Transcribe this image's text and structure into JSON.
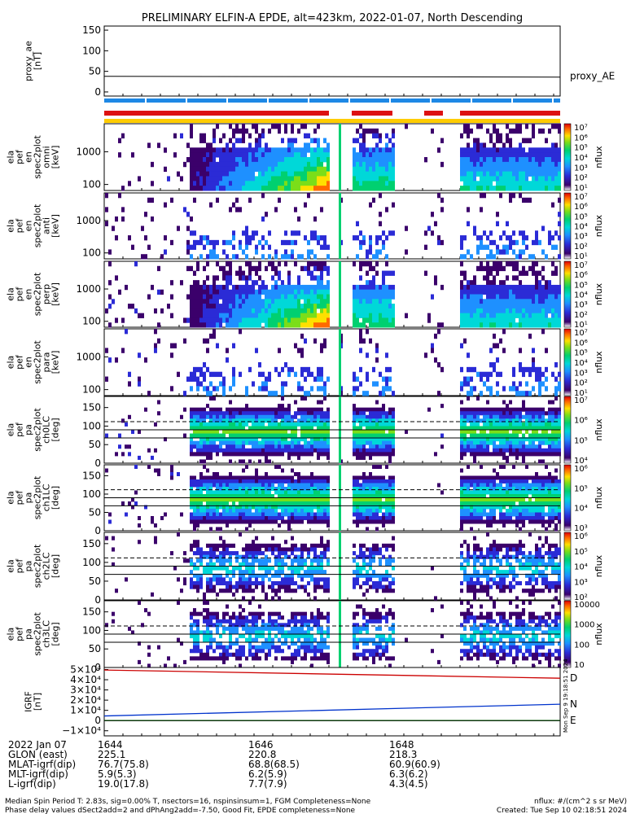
{
  "chart_data": {
    "type": "heatmap",
    "title": "PRELIMINARY ELFIN-A EPDE, alt=423km, 2022-01-07, North Descending",
    "x_time_range": [
      "16:43:00",
      "16:49:35"
    ],
    "x_ticks": [
      "1644",
      "1646",
      "1648"
    ],
    "panels": [
      {
        "name": "proxy_ae",
        "type": "line",
        "ylabel": [
          "proxy_ae",
          "[nT]"
        ],
        "yticks": [
          "150",
          "100",
          "50",
          "0"
        ],
        "ylim": [
          -10,
          160
        ],
        "series": [
          {
            "name": "proxy_AE",
            "values": [
              38,
              38,
              38,
              38,
              38,
              38,
              37,
              37,
              37,
              37,
              36
            ]
          }
        ],
        "legend": "proxy_AE"
      },
      {
        "name": "ela_pef_en_spec2plot_omni",
        "type": "heatmap",
        "ylabel": [
          "ela",
          "pef",
          "en",
          "spec2plot",
          "omni",
          "[keV]"
        ],
        "yticks": [
          "1000",
          "100"
        ],
        "ylog": true,
        "colorbar": {
          "label": "nflux",
          "ticks": [
            "10⁷",
            "10⁶",
            "10⁵",
            "10⁴",
            "10³",
            "10²",
            "10¹"
          ]
        }
      },
      {
        "name": "ela_pef_en_spec2plot_anti",
        "type": "heatmap",
        "ylabel": [
          "ela",
          "pef",
          "en",
          "spec2plot",
          "anti",
          "[keV]"
        ],
        "yticks": [
          "1000",
          "100"
        ],
        "ylog": true,
        "colorbar": {
          "label": "nflux",
          "ticks": [
            "10⁷",
            "10⁶",
            "10⁵",
            "10⁴",
            "10³",
            "10²",
            "10¹"
          ]
        }
      },
      {
        "name": "ela_pef_en_spec2plot_perp",
        "type": "heatmap",
        "ylabel": [
          "ela",
          "pef",
          "en",
          "spec2plot",
          "perp",
          "[keV]"
        ],
        "yticks": [
          "1000",
          "100"
        ],
        "ylog": true,
        "colorbar": {
          "label": "nflux",
          "ticks": [
            "10⁷",
            "10⁶",
            "10⁵",
            "10⁴",
            "10³",
            "10²",
            "10¹"
          ]
        }
      },
      {
        "name": "ela_pef_en_spec2plot_para",
        "type": "heatmap",
        "ylabel": [
          "ela",
          "pef",
          "en",
          "spec2plot",
          "para",
          "[keV]"
        ],
        "yticks": [
          "1000",
          "100"
        ],
        "ylog": true,
        "colorbar": {
          "label": "nflux",
          "ticks": [
            "10⁷",
            "10⁶",
            "10⁵",
            "10⁴",
            "10³",
            "10²",
            "10¹"
          ]
        }
      },
      {
        "name": "ela_pef_pa_spec2plot_ch0LC",
        "type": "heatmap",
        "ylabel": [
          "ela",
          "pef",
          "pa",
          "spec2plot",
          "ch0LC",
          "[deg]"
        ],
        "yticks": [
          "150",
          "100",
          "50",
          "0"
        ],
        "ylim": [
          0,
          180
        ],
        "colorbar": {
          "label": "nflux",
          "ticks": [
            "10⁷",
            "10⁶",
            "10⁵",
            "10⁴"
          ]
        }
      },
      {
        "name": "ela_pef_pa_spec2plot_ch1LC",
        "type": "heatmap",
        "ylabel": [
          "ela",
          "pef",
          "pa",
          "spec2plot",
          "ch1LC",
          "[deg]"
        ],
        "yticks": [
          "150",
          "100",
          "50",
          "0"
        ],
        "ylim": [
          0,
          180
        ],
        "colorbar": {
          "label": "nflux",
          "ticks": [
            "10⁶",
            "10⁵",
            "10⁴",
            "10³"
          ]
        }
      },
      {
        "name": "ela_pef_pa_spec2plot_ch2LC",
        "type": "heatmap",
        "ylabel": [
          "ela",
          "pef",
          "pa",
          "spec2plot",
          "ch2LC",
          "[deg]"
        ],
        "yticks": [
          "150",
          "100",
          "50",
          "0"
        ],
        "ylim": [
          0,
          180
        ],
        "colorbar": {
          "label": "nflux",
          "ticks": [
            "10⁶",
            "10⁵",
            "10⁴",
            "10³",
            "10²"
          ]
        }
      },
      {
        "name": "ela_pef_pa_spec2plot_ch3LC",
        "type": "heatmap",
        "ylabel": [
          "ela",
          "pef",
          "pa",
          "spec2plot",
          "ch3LC",
          "[deg]"
        ],
        "yticks": [
          "150",
          "100",
          "50",
          "0"
        ],
        "ylim": [
          0,
          180
        ],
        "colorbar": {
          "label": "nflux",
          "ticks": [
            "10000",
            "1000",
            "100",
            "10"
          ]
        }
      },
      {
        "name": "igrf",
        "type": "line",
        "ylabel": [
          "IGRF",
          "[nT]"
        ],
        "yticks": [
          "5×10⁴",
          "4×10⁴",
          "3×10⁴",
          "2×10⁴",
          "1×10⁴",
          "0",
          "−1×10⁴"
        ],
        "ylim": [
          -15000,
          52000
        ],
        "series": [
          {
            "name": "D",
            "color": "#cc0000",
            "start": 49500,
            "end": 41500
          },
          {
            "name": "N",
            "color": "#0033cc",
            "start": 4500,
            "end": 16000
          },
          {
            "name": "E",
            "color": "#00aa00",
            "start": 0,
            "end": 0
          }
        ]
      }
    ],
    "footer_rows": [
      {
        "label": "2022 Jan 07",
        "v1": "1644",
        "v2": "1646",
        "v3": "1648"
      },
      {
        "label": "GLON (east)",
        "v1": "225.1",
        "v2": "220.8",
        "v3": "218.3"
      },
      {
        "label": "MLAT-igrf(dip)",
        "v1": "76.7(75.8)",
        "v2": "68.8(68.5)",
        "v3": "60.9(60.9)"
      },
      {
        "label": "MLT-igrf(dip)",
        "v1": "5.9(5.3)",
        "v2": "6.2(5.9)",
        "v3": "6.3(6.2)"
      },
      {
        "label": "L-igrf(dip)",
        "v1": "19.0(17.8)",
        "v2": "7.7(7.9)",
        "v3": "4.3(4.5)"
      }
    ]
  },
  "notes": {
    "line1": "Median Spin Period T: 2.83s, sig=0.00% T, nsectors=16, nspinsinsum=1, FGM Completeness=None",
    "line2": "Phase delay values dSect2add=2 and dPhAng2add=-7.50, Good Fit, EPDE completeness=None",
    "right1": "nflux: #/(cm^2 s sr MeV)",
    "right2": "Created: Tue Sep 10 02:18:51 2024",
    "side_stamp": "Mon Sep 9 19:18:51 2024"
  },
  "colors": {
    "blue_bar": "#1e88e5",
    "red_bar": "#dd1111",
    "yellow_bar": "#ffcc00"
  }
}
